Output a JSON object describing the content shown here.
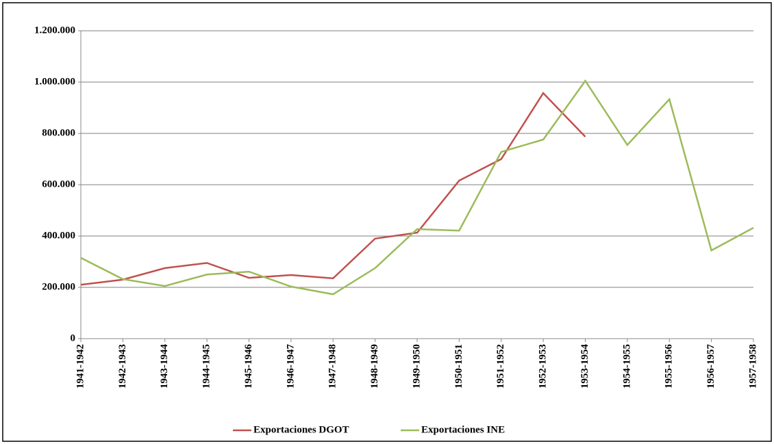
{
  "chart_data": {
    "type": "line",
    "categories": [
      "1941-1942",
      "1942-1943",
      "1943-1944",
      "1944-1945",
      "1945-1946",
      "1946-1947",
      "1947-1948",
      "1948-1949",
      "1949-1950",
      "1950-1951",
      "1951-1952",
      "1952-1953",
      "1953-1954",
      "1954-1955",
      "1955-1956",
      "1956-1957",
      "1957-1958"
    ],
    "series": [
      {
        "name": "Exportaciones DGOT",
        "color": "#c0504d",
        "values": [
          210000,
          230000,
          275000,
          295000,
          237000,
          248000,
          235000,
          390000,
          413000,
          616000,
          700000,
          957000,
          787000,
          null,
          null,
          null,
          null
        ]
      },
      {
        "name": "Exportaciones INE",
        "color": "#9bbb59",
        "values": [
          315000,
          232000,
          205000,
          250000,
          261000,
          203000,
          173000,
          275000,
          427000,
          421000,
          728000,
          776000,
          1005000,
          755000,
          933000,
          344000,
          432000
        ]
      }
    ],
    "ylim": [
      0,
      1200000
    ],
    "yticks": [
      0,
      {
        "value": 200000,
        "label": "200.000"
      },
      {
        "value": 400000,
        "label": "400.000"
      },
      {
        "value": 600000,
        "label": "600.000"
      },
      {
        "value": 800000,
        "label": "800.000"
      },
      {
        "value": 1000000,
        "label": "1.000.000"
      },
      {
        "value": 1200000,
        "label": "1.200.000"
      }
    ],
    "grid": true,
    "legend": "bottom"
  }
}
